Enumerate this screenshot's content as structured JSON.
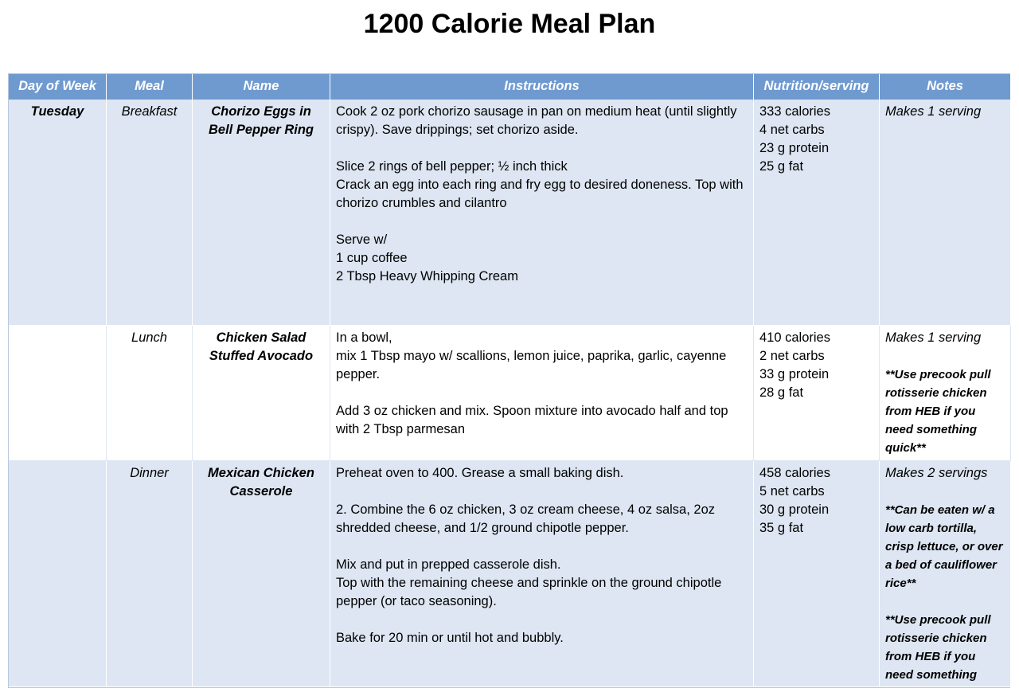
{
  "title": "1200 Calorie Meal Plan",
  "headers": [
    "Day of Week",
    "Meal",
    "Name",
    "Instructions",
    "Nutrition/serving",
    "Notes"
  ],
  "rows": [
    {
      "day": "Tuesday",
      "meal": "Breakfast",
      "name": "Chorizo Eggs in Bell Pepper Ring",
      "instructions": [
        "Cook 2 oz pork chorizo sausage in pan on medium heat (until slightly crispy). Save drippings; set chorizo aside.",
        "",
        "Slice 2 rings of bell pepper; ½ inch thick",
        "Crack an egg into each ring and fry egg to desired doneness. Top with chorizo crumbles and cilantro",
        "",
        "Serve w/",
        "1 cup coffee",
        "2 Tbsp Heavy Whipping Cream"
      ],
      "nutrition": [
        "333 calories",
        "4 net carbs",
        "23 g protein",
        "25 g fat"
      ],
      "notes_lead": "Makes 1 serving",
      "notes_extra": []
    },
    {
      "day": "",
      "meal": "Lunch",
      "name": "Chicken Salad Stuffed Avocado",
      "instructions": [
        "In a bowl,",
        "mix 1 Tbsp mayo w/ scallions, lemon juice, paprika, garlic, cayenne pepper.",
        "",
        "Add 3 oz chicken and mix. Spoon mixture into avocado half and top with 2 Tbsp parmesan"
      ],
      "nutrition": [
        "410 calories",
        "2 net carbs",
        "33 g protein",
        "28 g fat"
      ],
      "notes_lead": "Makes 1 serving",
      "notes_extra": [
        "**Use precook pull rotisserie chicken from HEB if you need something quick**"
      ]
    },
    {
      "day": "",
      "meal": "Dinner",
      "name": "Mexican Chicken Casserole",
      "instructions": [
        "Preheat oven to 400. Grease a small baking dish.",
        "",
        "2. Combine the 6 oz chicken, 3 oz cream cheese, 4 oz salsa, 2oz shredded cheese, and 1/2 ground chipotle pepper.",
        "",
        "Mix and put in prepped casserole dish.",
        "Top with the remaining cheese and sprinkle on the ground chipotle pepper (or taco seasoning).",
        "",
        "Bake for 20 min or until hot and bubbly."
      ],
      "nutrition": [
        "458 calories",
        "5 net carbs",
        "30 g protein",
        "35 g fat"
      ],
      "notes_lead": "Makes 2 servings",
      "notes_extra": [
        "**Can be eaten w/ a low carb tortilla, crisp lettuce, or over a bed of cauliflower rice**",
        "**Use precook pull rotisserie chicken from HEB if you need something quick**"
      ]
    }
  ]
}
